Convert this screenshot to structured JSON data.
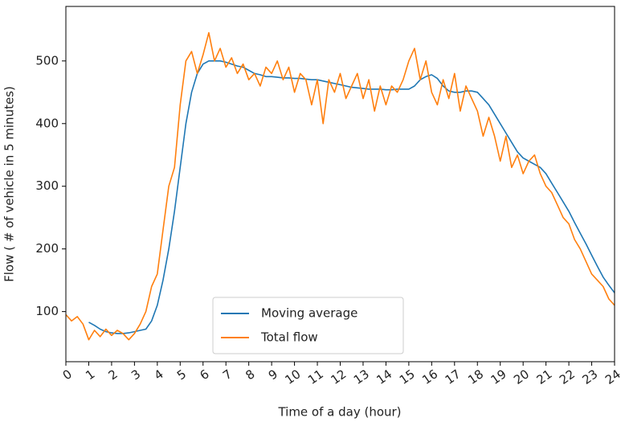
{
  "chart_data": {
    "type": "line",
    "xlabel": "Time of a day (hour)",
    "ylabel": "Flow ( # of vehicle in 5 minutes)",
    "x": [
      0,
      0.25,
      0.5,
      0.75,
      1,
      1.25,
      1.5,
      1.75,
      2,
      2.25,
      2.5,
      2.75,
      3,
      3.25,
      3.5,
      3.75,
      4,
      4.25,
      4.5,
      4.75,
      5,
      5.25,
      5.5,
      5.75,
      6,
      6.25,
      6.5,
      6.75,
      7,
      7.25,
      7.5,
      7.75,
      8,
      8.25,
      8.5,
      8.75,
      9,
      9.25,
      9.5,
      9.75,
      10,
      10.25,
      10.5,
      10.75,
      11,
      11.25,
      11.5,
      11.75,
      12,
      12.25,
      12.5,
      12.75,
      13,
      13.25,
      13.5,
      13.75,
      14,
      14.25,
      14.5,
      14.75,
      15,
      15.25,
      15.5,
      15.75,
      16,
      16.25,
      16.5,
      16.75,
      17,
      17.25,
      17.5,
      17.75,
      18,
      18.25,
      18.5,
      18.75,
      19,
      19.25,
      19.5,
      19.75,
      20,
      20.25,
      20.5,
      20.75,
      21,
      21.25,
      21.5,
      21.75,
      22,
      22.25,
      22.5,
      22.75,
      23,
      23.25,
      23.5,
      23.75,
      24
    ],
    "series": [
      {
        "name": "Moving average",
        "color": "#1f77b4",
        "values": [
          null,
          null,
          null,
          null,
          83,
          78,
          72,
          68,
          66,
          65,
          65,
          66,
          68,
          70,
          72,
          85,
          110,
          150,
          200,
          260,
          330,
          400,
          450,
          480,
          495,
          500,
          500,
          500,
          498,
          495,
          492,
          490,
          485,
          480,
          478,
          475,
          475,
          474,
          473,
          473,
          472,
          472,
          471,
          470,
          470,
          468,
          466,
          464,
          462,
          460,
          458,
          457,
          456,
          455,
          455,
          455,
          454,
          454,
          455,
          455,
          455,
          460,
          470,
          475,
          478,
          472,
          460,
          452,
          450,
          450,
          452,
          452,
          450,
          440,
          430,
          415,
          400,
          385,
          370,
          355,
          345,
          340,
          335,
          330,
          320,
          305,
          290,
          275,
          260,
          242,
          225,
          208,
          190,
          172,
          155,
          142,
          130
        ]
      },
      {
        "name": "Total flow",
        "color": "#ff7f0e",
        "values": [
          95,
          85,
          92,
          80,
          55,
          70,
          60,
          72,
          62,
          70,
          65,
          55,
          65,
          80,
          100,
          140,
          160,
          230,
          300,
          330,
          430,
          500,
          515,
          480,
          510,
          545,
          500,
          520,
          490,
          505,
          480,
          495,
          470,
          480,
          460,
          490,
          480,
          500,
          470,
          490,
          450,
          480,
          470,
          430,
          470,
          400,
          470,
          450,
          480,
          440,
          460,
          480,
          440,
          470,
          420,
          460,
          430,
          460,
          450,
          470,
          500,
          520,
          470,
          500,
          450,
          430,
          470,
          440,
          480,
          420,
          460,
          440,
          420,
          380,
          410,
          380,
          340,
          380,
          330,
          350,
          320,
          340,
          350,
          320,
          300,
          290,
          270,
          250,
          240,
          215,
          200,
          180,
          160,
          150,
          140,
          120,
          110
        ]
      }
    ],
    "xlim": [
      0,
      24
    ],
    "xticks": [
      0,
      1,
      2,
      3,
      4,
      5,
      6,
      7,
      8,
      9,
      10,
      11,
      12,
      13,
      14,
      15,
      16,
      17,
      18,
      19,
      20,
      21,
      22,
      23,
      24
    ],
    "ylim": [
      20,
      587
    ],
    "yticks": [
      100,
      200,
      300,
      400,
      500
    ],
    "legend": "lower center"
  }
}
